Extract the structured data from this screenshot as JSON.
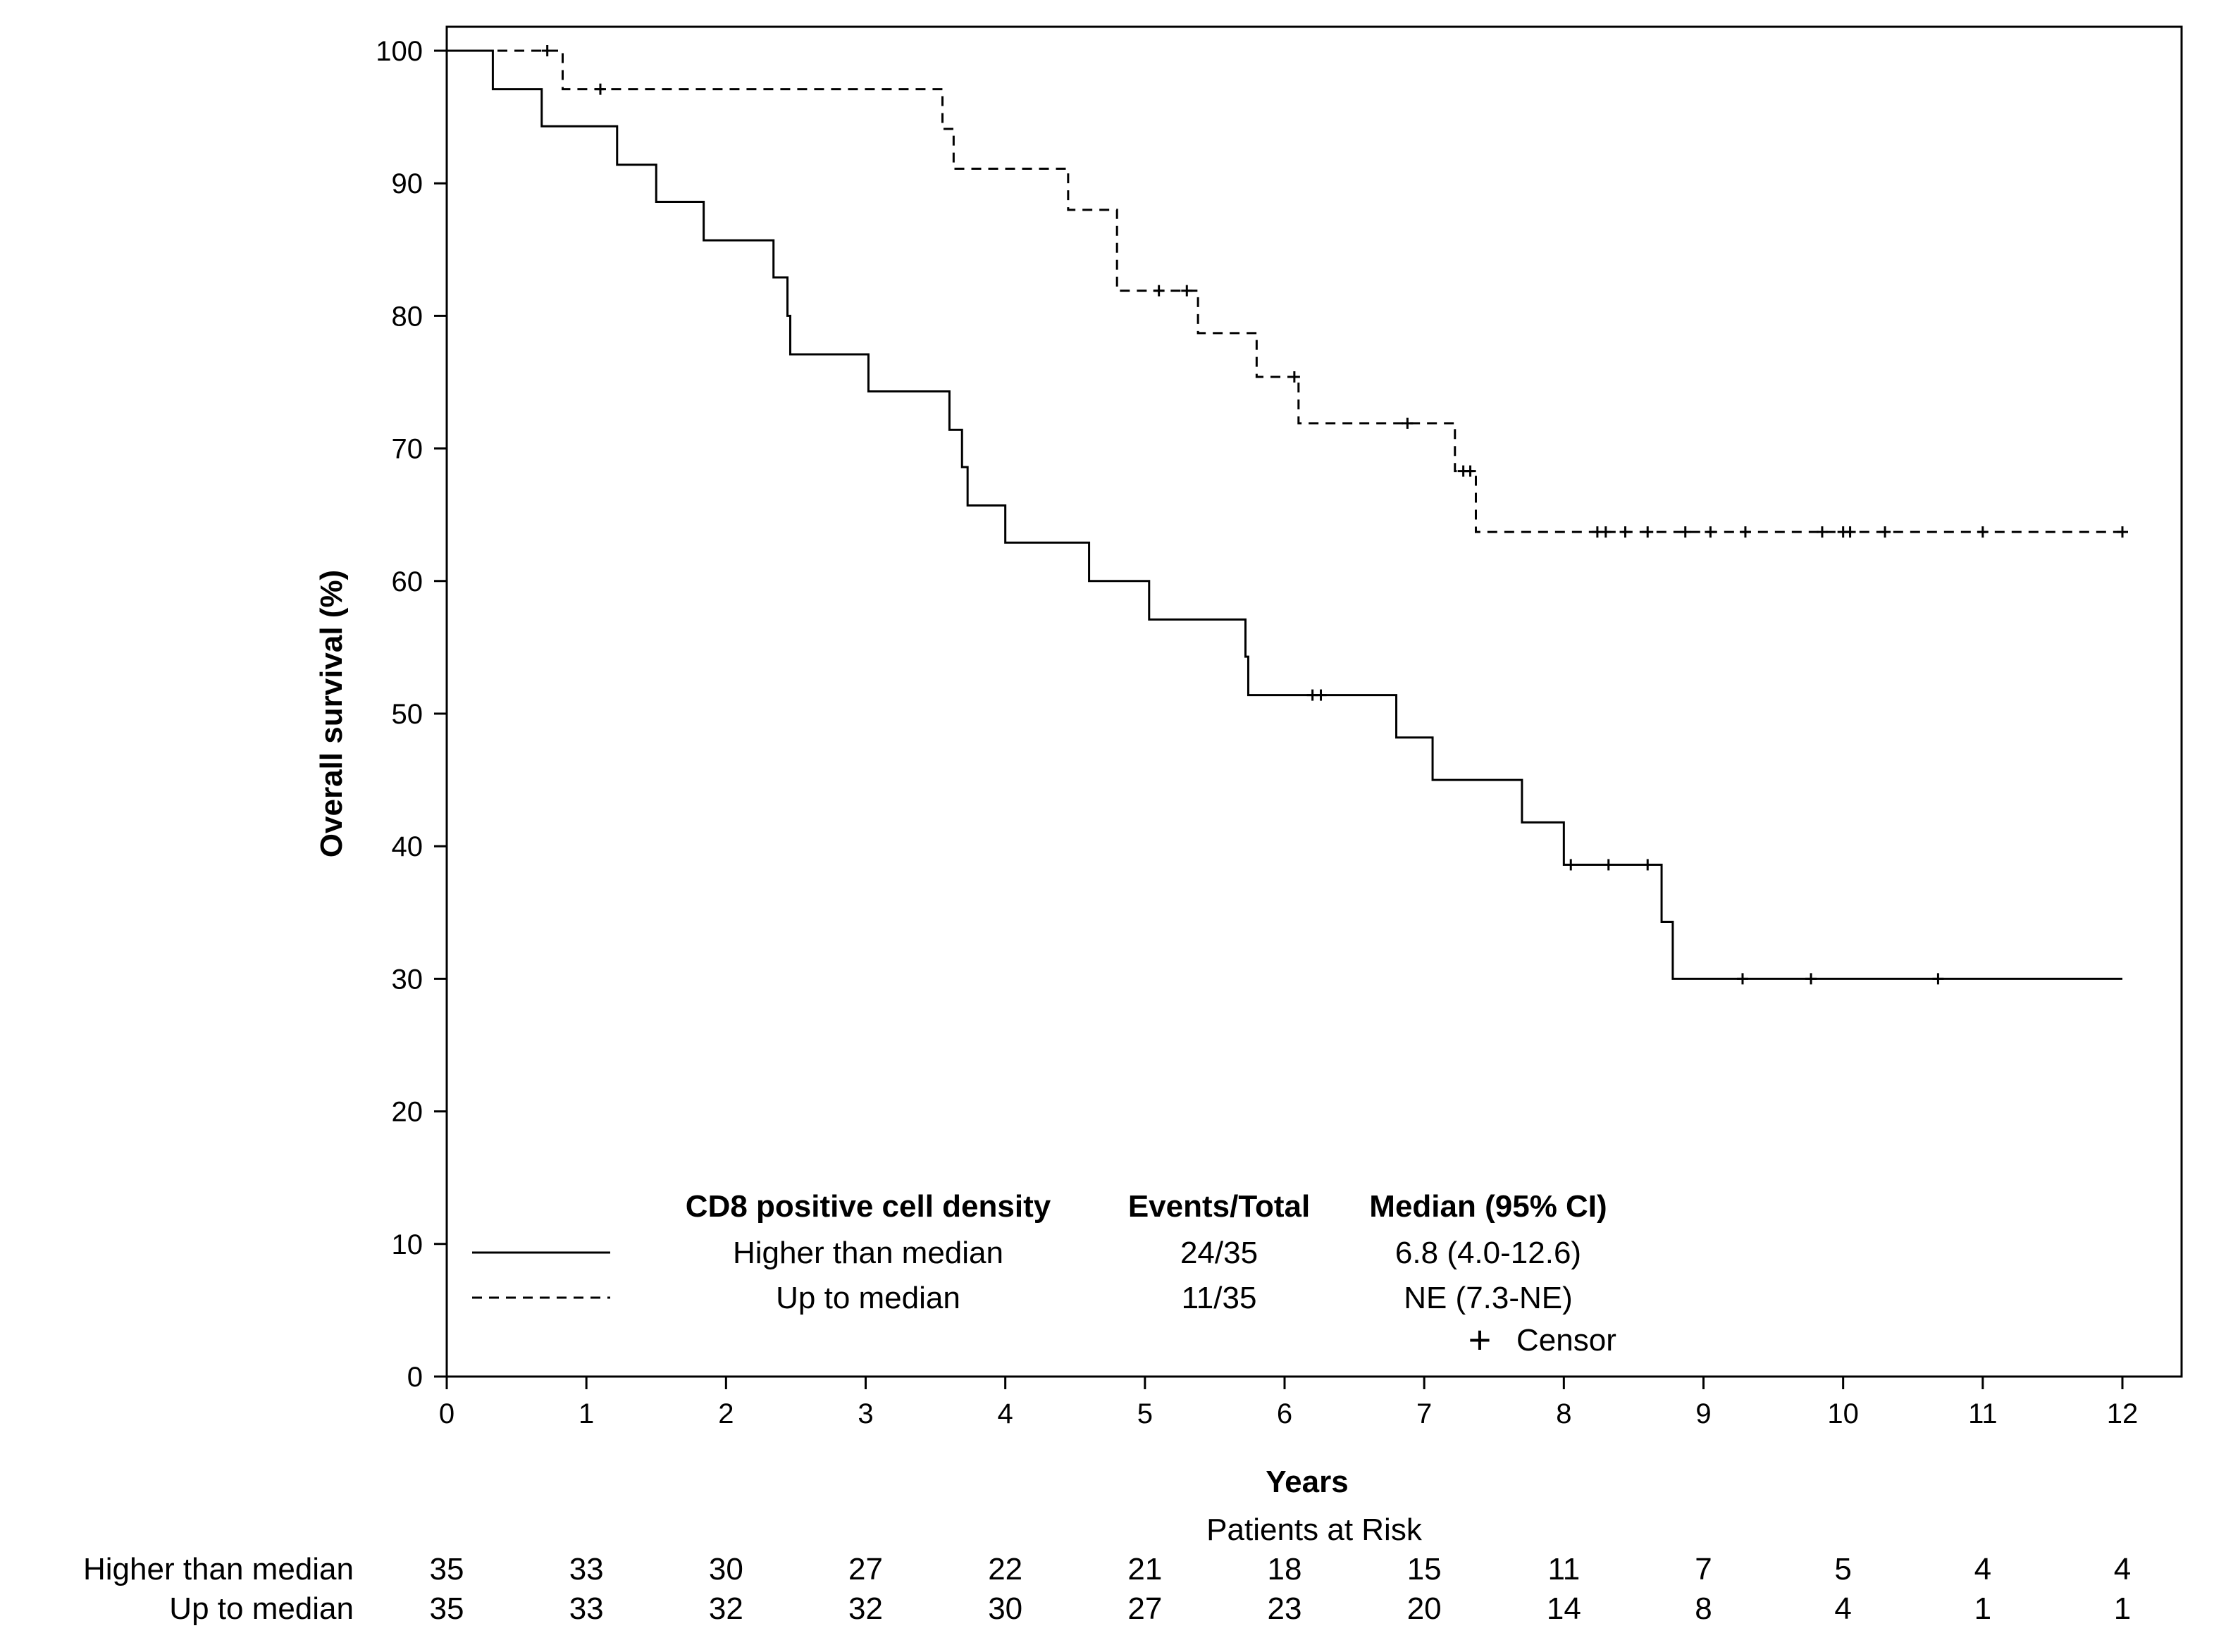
{
  "chart_data": {
    "type": "line",
    "subtype": "kaplan-meier",
    "xlabel": "Years",
    "ylabel": "Overall survival (%)",
    "xlim": [
      0,
      12
    ],
    "ylim": [
      0,
      100
    ],
    "x_ticks": [
      0,
      1,
      2,
      3,
      4,
      5,
      6,
      7,
      8,
      9,
      10,
      11,
      12
    ],
    "y_ticks": [
      0,
      10,
      20,
      30,
      40,
      50,
      60,
      70,
      80,
      90,
      100
    ],
    "grid": false,
    "legend": {
      "position": "bottom-left",
      "col1_header": "CD8 positive cell density",
      "col2_header": "Events/Total",
      "col3_header": "Median (95% CI)",
      "censor_symbol": "+",
      "censor_label": "Censor"
    },
    "series": [
      {
        "name": "Higher than median",
        "events_total": "24/35",
        "median_ci": "6.8 (4.0-12.6)",
        "line_style": "solid",
        "x": [
          0,
          0.33,
          0.68,
          1.22,
          1.5,
          1.84,
          2.34,
          2.44,
          2.46,
          3.02,
          3.6,
          3.69,
          3.73,
          4.0,
          4.6,
          5.03,
          5.72,
          5.74,
          6.8,
          7.06,
          7.7,
          8.0,
          8.7,
          8.78,
          12.0
        ],
        "y": [
          100,
          97.1,
          94.3,
          91.4,
          88.6,
          85.7,
          82.9,
          80.0,
          77.1,
          74.3,
          71.4,
          68.6,
          65.7,
          62.9,
          60.0,
          57.1,
          54.3,
          51.4,
          48.2,
          45.0,
          41.8,
          38.6,
          34.3,
          30.0,
          30.0
        ],
        "censored": [
          [
            6.2,
            51.4
          ],
          [
            6.26,
            51.4
          ],
          [
            8.05,
            38.6
          ],
          [
            8.32,
            38.6
          ],
          [
            8.6,
            38.6
          ],
          [
            9.28,
            30.0
          ],
          [
            9.77,
            30.0
          ],
          [
            10.68,
            30.0
          ]
        ]
      },
      {
        "name": "Up to median",
        "events_total": "11/35",
        "median_ci": "NE (7.3-NE)",
        "line_style": "dashed",
        "x": [
          0,
          0.83,
          3.55,
          3.63,
          4.45,
          4.8,
          5.38,
          5.8,
          6.1,
          7.22,
          7.37,
          12.0
        ],
        "y": [
          100,
          97.1,
          94.1,
          91.1,
          88.0,
          81.9,
          78.7,
          75.4,
          71.9,
          68.3,
          63.7,
          63.7
        ],
        "censored": [
          [
            0.72,
            100
          ],
          [
            1.1,
            97.1
          ],
          [
            5.1,
            81.9
          ],
          [
            5.3,
            81.9
          ],
          [
            6.07,
            75.4
          ],
          [
            6.88,
            71.9
          ],
          [
            7.28,
            68.3
          ],
          [
            7.33,
            68.3
          ],
          [
            8.24,
            63.7
          ],
          [
            8.3,
            63.7
          ],
          [
            8.44,
            63.7
          ],
          [
            8.6,
            63.7
          ],
          [
            8.87,
            63.7
          ],
          [
            9.05,
            63.7
          ],
          [
            9.3,
            63.7
          ],
          [
            9.85,
            63.7
          ],
          [
            10.0,
            63.7
          ],
          [
            10.05,
            63.7
          ],
          [
            10.3,
            63.7
          ],
          [
            11.0,
            63.7
          ],
          [
            12.0,
            63.7
          ]
        ]
      }
    ],
    "patients_at_risk": {
      "title": "Patients at Risk",
      "times": [
        0,
        1,
        2,
        3,
        4,
        5,
        6,
        7,
        8,
        9,
        10,
        11,
        12
      ],
      "rows": [
        {
          "label": "Higher than median",
          "counts": [
            35,
            33,
            30,
            27,
            22,
            21,
            18,
            15,
            11,
            7,
            5,
            4,
            4
          ]
        },
        {
          "label": "Up to median",
          "counts": [
            35,
            33,
            32,
            32,
            30,
            27,
            23,
            20,
            14,
            8,
            4,
            1,
            1
          ]
        }
      ]
    }
  }
}
